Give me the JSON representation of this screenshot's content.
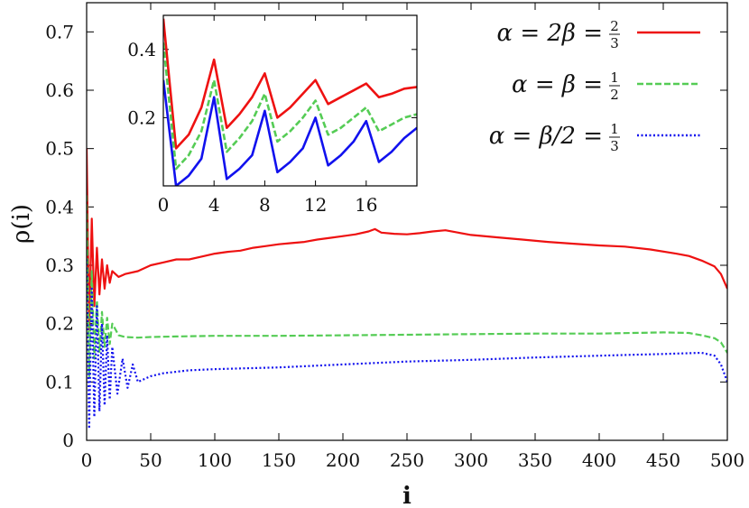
{
  "chart_data": [
    {
      "id": "main",
      "type": "line",
      "title": "",
      "xlabel": "i",
      "ylabel": "ρ(i)",
      "xlim": [
        0,
        500
      ],
      "ylim": [
        0,
        0.75
      ],
      "xticks": [
        0,
        50,
        100,
        150,
        200,
        250,
        300,
        350,
        400,
        450,
        500
      ],
      "yticks": [
        0,
        0.1,
        0.2,
        0.3,
        0.4,
        0.5,
        0.6,
        0.7
      ],
      "series": [
        {
          "name": "α = 2β = 2/3",
          "legend": {
            "lhs": "α = 2β =",
            "num": "2",
            "den": "3"
          },
          "color": "#ee1111",
          "dash": "solid",
          "x": [
            0,
            2,
            4,
            6,
            8,
            10,
            12,
            14,
            16,
            18,
            20,
            25,
            30,
            40,
            50,
            60,
            70,
            80,
            90,
            100,
            110,
            120,
            130,
            140,
            150,
            160,
            170,
            180,
            190,
            200,
            210,
            220,
            225,
            230,
            240,
            250,
            260,
            270,
            280,
            290,
            300,
            320,
            340,
            360,
            380,
            400,
            420,
            440,
            460,
            470,
            480,
            490,
            495,
            500
          ],
          "y": [
            0.5,
            0.19,
            0.38,
            0.23,
            0.33,
            0.25,
            0.31,
            0.26,
            0.3,
            0.27,
            0.29,
            0.28,
            0.285,
            0.29,
            0.3,
            0.305,
            0.31,
            0.31,
            0.315,
            0.32,
            0.323,
            0.325,
            0.33,
            0.333,
            0.336,
            0.338,
            0.34,
            0.344,
            0.347,
            0.35,
            0.353,
            0.358,
            0.362,
            0.356,
            0.354,
            0.353,
            0.355,
            0.358,
            0.36,
            0.356,
            0.352,
            0.348,
            0.344,
            0.34,
            0.337,
            0.334,
            0.332,
            0.327,
            0.32,
            0.316,
            0.308,
            0.298,
            0.285,
            0.26
          ]
        },
        {
          "name": "α = β = 1/2",
          "legend": {
            "lhs": "α = β =",
            "num": "1",
            "den": "2"
          },
          "color": "#55cc55",
          "dash": "dashed",
          "x": [
            0,
            2,
            4,
            6,
            8,
            10,
            12,
            14,
            16,
            18,
            20,
            25,
            30,
            40,
            50,
            70,
            100,
            150,
            200,
            250,
            300,
            350,
            400,
            450,
            470,
            480,
            490,
            495,
            500
          ],
          "y": [
            0.42,
            0.11,
            0.29,
            0.14,
            0.24,
            0.15,
            0.22,
            0.16,
            0.21,
            0.165,
            0.2,
            0.18,
            0.177,
            0.176,
            0.177,
            0.178,
            0.179,
            0.179,
            0.18,
            0.181,
            0.182,
            0.183,
            0.183,
            0.185,
            0.184,
            0.18,
            0.175,
            0.168,
            0.15
          ]
        },
        {
          "name": "α = β/2 = 1/3",
          "legend": {
            "lhs": "α = β/2 =",
            "num": "1",
            "den": "3"
          },
          "color": "#1111ee",
          "dash": "dotted",
          "x": [
            0,
            2,
            4,
            6,
            8,
            10,
            12,
            14,
            16,
            18,
            20,
            24,
            28,
            32,
            36,
            40,
            50,
            60,
            80,
            100,
            150,
            200,
            250,
            300,
            350,
            400,
            450,
            480,
            490,
            495,
            500
          ],
          "y": [
            0.31,
            0.02,
            0.26,
            0.04,
            0.23,
            0.05,
            0.2,
            0.06,
            0.18,
            0.07,
            0.16,
            0.08,
            0.14,
            0.09,
            0.13,
            0.1,
            0.11,
            0.115,
            0.12,
            0.122,
            0.125,
            0.13,
            0.135,
            0.138,
            0.142,
            0.145,
            0.148,
            0.15,
            0.145,
            0.13,
            0.1
          ]
        }
      ]
    },
    {
      "id": "inset",
      "type": "line",
      "xlim": [
        0,
        20
      ],
      "ylim": [
        0,
        0.5
      ],
      "xticks": [
        0,
        4,
        8,
        12,
        16
      ],
      "yticks": [
        0.2,
        0.4
      ],
      "series": [
        {
          "name": "α = 2β = 2/3",
          "color": "#ee1111",
          "dash": "solid",
          "x": [
            0,
            1,
            2,
            3,
            4,
            5,
            6,
            7,
            8,
            9,
            10,
            11,
            12,
            13,
            14,
            15,
            16,
            17,
            18,
            19,
            20
          ],
          "y": [
            0.49,
            0.11,
            0.15,
            0.23,
            0.37,
            0.17,
            0.21,
            0.26,
            0.33,
            0.2,
            0.23,
            0.27,
            0.31,
            0.24,
            0.26,
            0.28,
            0.3,
            0.26,
            0.27,
            0.285,
            0.29
          ]
        },
        {
          "name": "α = β = 1/2",
          "color": "#55cc55",
          "dash": "dashed",
          "x": [
            0,
            1,
            2,
            3,
            4,
            5,
            6,
            7,
            8,
            9,
            10,
            11,
            12,
            13,
            14,
            15,
            16,
            17,
            18,
            19,
            20
          ],
          "y": [
            0.42,
            0.05,
            0.09,
            0.16,
            0.31,
            0.1,
            0.14,
            0.19,
            0.27,
            0.13,
            0.16,
            0.2,
            0.25,
            0.15,
            0.17,
            0.2,
            0.23,
            0.16,
            0.18,
            0.2,
            0.21
          ]
        },
        {
          "name": "α = β/2 = 1/3",
          "color": "#1111ee",
          "dash": "solid",
          "x": [
            0,
            1,
            2,
            3,
            4,
            5,
            6,
            7,
            8,
            9,
            10,
            11,
            12,
            13,
            14,
            15,
            16,
            17,
            18,
            19,
            20
          ],
          "y": [
            0.31,
            0.0,
            0.03,
            0.08,
            0.26,
            0.02,
            0.05,
            0.09,
            0.22,
            0.04,
            0.07,
            0.11,
            0.2,
            0.06,
            0.09,
            0.13,
            0.19,
            0.07,
            0.1,
            0.14,
            0.17
          ]
        }
      ]
    }
  ]
}
